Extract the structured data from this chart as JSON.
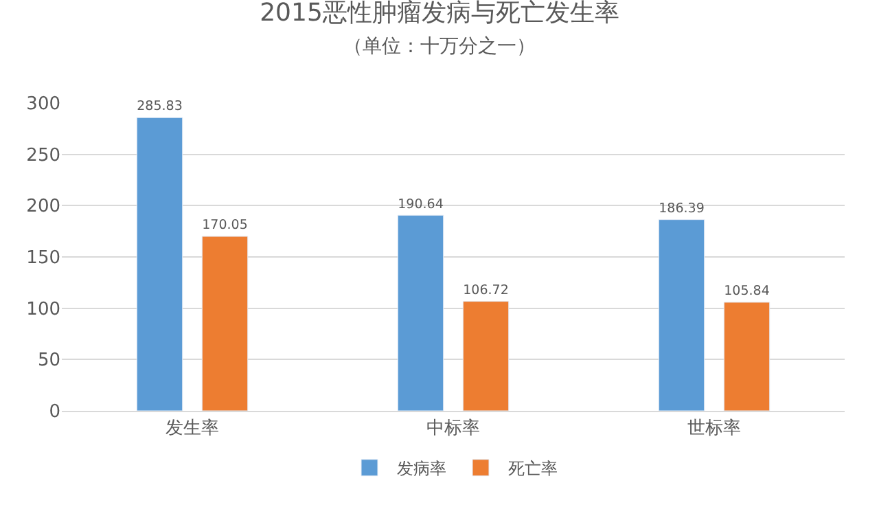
{
  "chart_data": {
    "type": "bar",
    "title": "2015恶性肿瘤发病与死亡发生率",
    "subtitle": "（单位：十万分之一）",
    "categories": [
      "发生率",
      "中标率",
      "世标率"
    ],
    "series": [
      {
        "name": "发病率",
        "color": "#5b9bd5",
        "values": [
          285.83,
          190.64,
          186.39
        ]
      },
      {
        "name": "死亡率",
        "color": "#ed7d31",
        "values": [
          170.05,
          106.72,
          105.84
        ]
      }
    ],
    "ylim": [
      0,
      300
    ],
    "yticks": [
      0,
      50,
      100,
      150,
      200,
      250,
      300
    ],
    "grid": "y",
    "legend": "bottom",
    "data_labels": true
  }
}
